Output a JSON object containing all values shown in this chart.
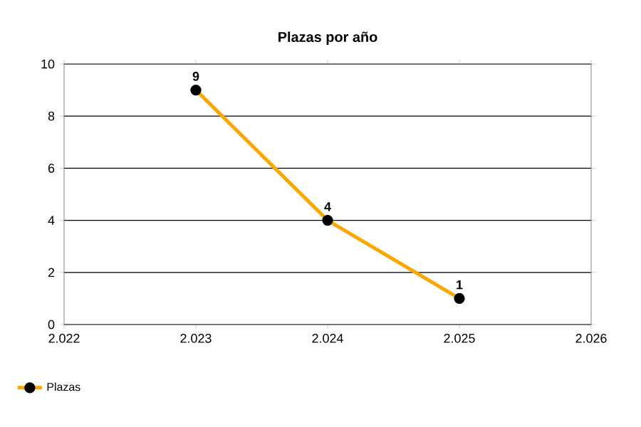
{
  "chart_data": {
    "type": "line",
    "title": "Plazas por año",
    "x": [
      2023,
      2024,
      2025
    ],
    "series": [
      {
        "name": "Plazas",
        "color": "#ffa500",
        "values": [
          9,
          4,
          1
        ]
      }
    ],
    "xlim": [
      2022,
      2026
    ],
    "xticks": [
      {
        "value": 2022,
        "label": "2.022"
      },
      {
        "value": 2023,
        "label": "2.023"
      },
      {
        "value": 2024,
        "label": "2.024"
      },
      {
        "value": 2025,
        "label": "2.025"
      },
      {
        "value": 2026,
        "label": "2.026"
      }
    ],
    "ylim": [
      0,
      10
    ],
    "yticks": [
      0,
      2,
      4,
      6,
      8,
      10
    ],
    "grid": "y",
    "legend": "bottom left",
    "marker": "circle",
    "line_style": "solid",
    "data_labels": true
  }
}
